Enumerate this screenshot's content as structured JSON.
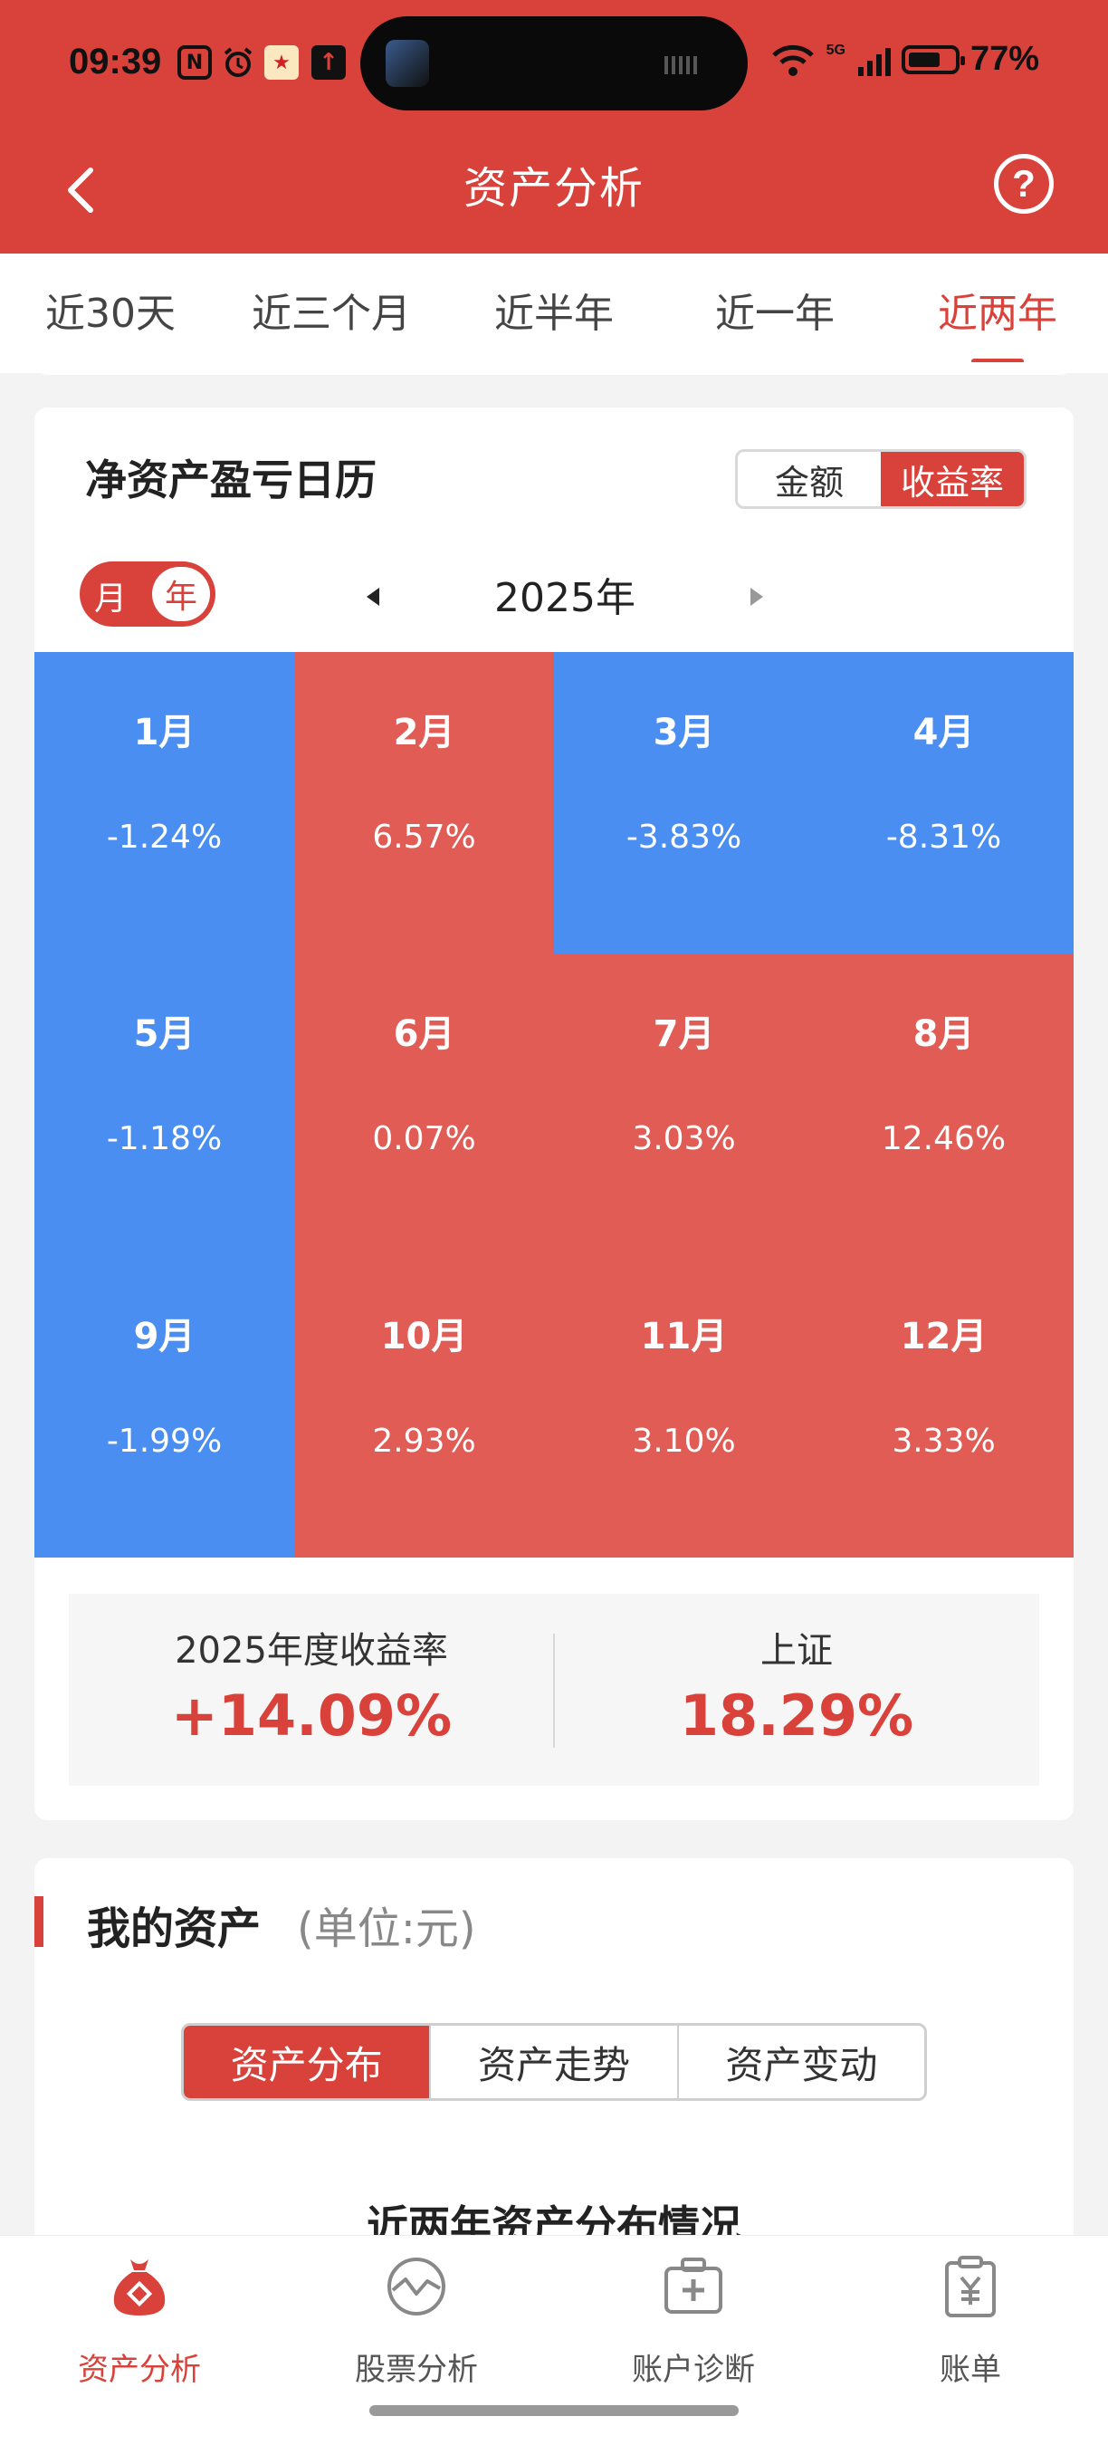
{
  "status_bar": {
    "time": "09:39",
    "signal_label": "5G",
    "battery": "77%"
  },
  "header": {
    "title": "资产分析"
  },
  "period_tabs": [
    {
      "label": "近30天",
      "active": false
    },
    {
      "label": "近三个月",
      "active": false
    },
    {
      "label": "近半年",
      "active": false
    },
    {
      "label": "近一年",
      "active": false
    },
    {
      "label": "近两年",
      "active": true
    }
  ],
  "calendar": {
    "title": "净资产盈亏日历",
    "mode_toggle": {
      "amount": "金额",
      "rate": "收益率",
      "selected": "收益率"
    },
    "view_toggle": {
      "month": "月",
      "year": "年",
      "selected": "年"
    },
    "year_label": "2025年",
    "months": [
      {
        "name": "1月",
        "value": "-1.24%",
        "trend": "down"
      },
      {
        "name": "2月",
        "value": "6.57%",
        "trend": "up"
      },
      {
        "name": "3月",
        "value": "-3.83%",
        "trend": "down"
      },
      {
        "name": "4月",
        "value": "-8.31%",
        "trend": "down"
      },
      {
        "name": "5月",
        "value": "-1.18%",
        "trend": "down"
      },
      {
        "name": "6月",
        "value": "0.07%",
        "trend": "up"
      },
      {
        "name": "7月",
        "value": "3.03%",
        "trend": "up"
      },
      {
        "name": "8月",
        "value": "12.46%",
        "trend": "up"
      },
      {
        "name": "9月",
        "value": "-1.99%",
        "trend": "down"
      },
      {
        "name": "10月",
        "value": "2.93%",
        "trend": "up"
      },
      {
        "name": "11月",
        "value": "3.10%",
        "trend": "up"
      },
      {
        "name": "12月",
        "value": "3.33%",
        "trend": "up"
      }
    ],
    "summary": {
      "annual_label": "2025年度收益率",
      "annual_value": "+14.09%",
      "index_label": "上证",
      "index_value": "18.29%"
    }
  },
  "assets": {
    "title": "我的资产",
    "unit": "(单位:元)",
    "tabs": [
      "资产分布",
      "资产走势",
      "资产变动"
    ],
    "selected_tab": "资产分布",
    "subtitle": "近两年资产分布情况"
  },
  "bottom_nav": [
    {
      "label": "资产分析",
      "icon": "money-bag-icon",
      "active": true
    },
    {
      "label": "股票分析",
      "icon": "stock-chart-icon",
      "active": false
    },
    {
      "label": "账户诊断",
      "icon": "medical-kit-icon",
      "active": false
    },
    {
      "label": "账单",
      "icon": "bill-icon",
      "active": false
    }
  ],
  "colors": {
    "accent": "#d8423b",
    "positive": "#e05c54",
    "negative": "#4a8ef1"
  }
}
